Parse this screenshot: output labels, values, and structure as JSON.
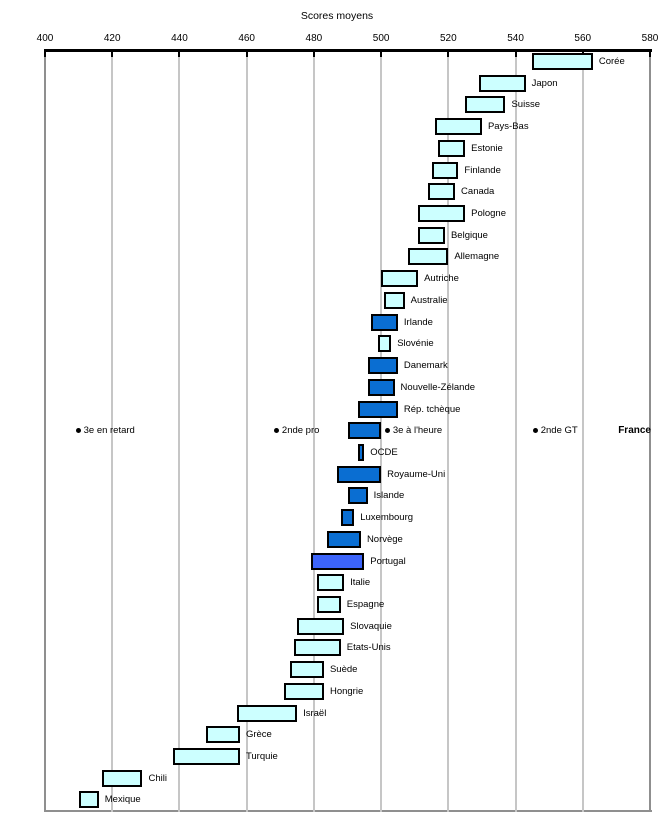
{
  "chart_data": {
    "type": "bar",
    "subtype": "horizontal-range-bars",
    "title": "Scores moyens",
    "x_axis": {
      "min": 400,
      "max": 580,
      "tick_step": 20,
      "position": "top",
      "ticks": [
        400,
        420,
        440,
        460,
        480,
        500,
        520,
        540,
        560,
        580
      ]
    },
    "grid": "vertical-on",
    "legend": "none",
    "colors": {
      "cyan": "#ccffff",
      "blue": "#0a6ed2",
      "royal": "#3c64fa",
      "bar_border": "#000000",
      "gridline": "#c6c6c6",
      "frame": "#8f8f8f",
      "axis": "#000000"
    },
    "rows": [
      {
        "label": "Corée",
        "low": 545,
        "high": 563,
        "color": "cyan"
      },
      {
        "label": "Japon",
        "low": 529,
        "high": 543,
        "color": "cyan"
      },
      {
        "label": "Suisse",
        "low": 525,
        "high": 537,
        "color": "cyan"
      },
      {
        "label": "Pays-Bas",
        "low": 516,
        "high": 530,
        "color": "cyan"
      },
      {
        "label": "Estonie",
        "low": 517,
        "high": 525,
        "color": "cyan"
      },
      {
        "label": "Finlande",
        "low": 515,
        "high": 523,
        "color": "cyan"
      },
      {
        "label": "Canada",
        "low": 514,
        "high": 522,
        "color": "cyan"
      },
      {
        "label": "Pologne",
        "low": 511,
        "high": 525,
        "color": "cyan"
      },
      {
        "label": "Belgique",
        "low": 511,
        "high": 519,
        "color": "cyan"
      },
      {
        "label": "Allemagne",
        "low": 508,
        "high": 520,
        "color": "cyan"
      },
      {
        "label": "Autriche",
        "low": 500,
        "high": 511,
        "color": "cyan"
      },
      {
        "label": "Australie",
        "low": 501,
        "high": 507,
        "color": "cyan"
      },
      {
        "label": "Irlande",
        "low": 497,
        "high": 505,
        "color": "blue"
      },
      {
        "label": "Slovénie",
        "low": 499,
        "high": 503,
        "color": "cyan"
      },
      {
        "label": "Danemark",
        "low": 496,
        "high": 505,
        "color": "blue"
      },
      {
        "label": "Nouvelle-Zélande",
        "low": 496,
        "high": 504,
        "color": "blue"
      },
      {
        "label": "Rép. tchèque",
        "low": 493,
        "high": 505,
        "color": "blue"
      },
      {
        "label": "France",
        "low": 490,
        "high": 500,
        "color": "blue",
        "france_row": true,
        "markers": [
          {
            "label": "3e en retard",
            "value": 410
          },
          {
            "label": "2nde pro",
            "value": 469
          },
          {
            "label": "3e à l'heure",
            "value": 502
          },
          {
            "label": "2nde GT",
            "value": 546
          }
        ]
      },
      {
        "label": "OCDE",
        "low": 493,
        "high": 495,
        "color": "blue"
      },
      {
        "label": "Royaume-Uni",
        "low": 487,
        "high": 500,
        "color": "blue"
      },
      {
        "label": "Islande",
        "low": 490,
        "high": 496,
        "color": "blue"
      },
      {
        "label": "Luxembourg",
        "low": 488,
        "high": 492,
        "color": "blue"
      },
      {
        "label": "Norvège",
        "low": 484,
        "high": 494,
        "color": "blue"
      },
      {
        "label": "Portugal",
        "low": 479,
        "high": 495,
        "color": "royal"
      },
      {
        "label": "Italie",
        "low": 481,
        "high": 489,
        "color": "cyan"
      },
      {
        "label": "Espagne",
        "low": 481,
        "high": 488,
        "color": "cyan"
      },
      {
        "label": "Slovaquie",
        "low": 475,
        "high": 489,
        "color": "cyan"
      },
      {
        "label": "Etats-Unis",
        "low": 474,
        "high": 488,
        "color": "cyan"
      },
      {
        "label": "Suède",
        "low": 473,
        "high": 483,
        "color": "cyan"
      },
      {
        "label": "Hongrie",
        "low": 471,
        "high": 483,
        "color": "cyan"
      },
      {
        "label": "Israël",
        "low": 457,
        "high": 475,
        "color": "cyan"
      },
      {
        "label": "Grèce",
        "low": 448,
        "high": 458,
        "color": "cyan"
      },
      {
        "label": "Turquie",
        "low": 438,
        "high": 458,
        "color": "cyan"
      },
      {
        "label": "Chili",
        "low": 417,
        "high": 429,
        "color": "cyan"
      },
      {
        "label": "Mexique",
        "low": 410,
        "high": 416,
        "color": "cyan"
      }
    ]
  }
}
